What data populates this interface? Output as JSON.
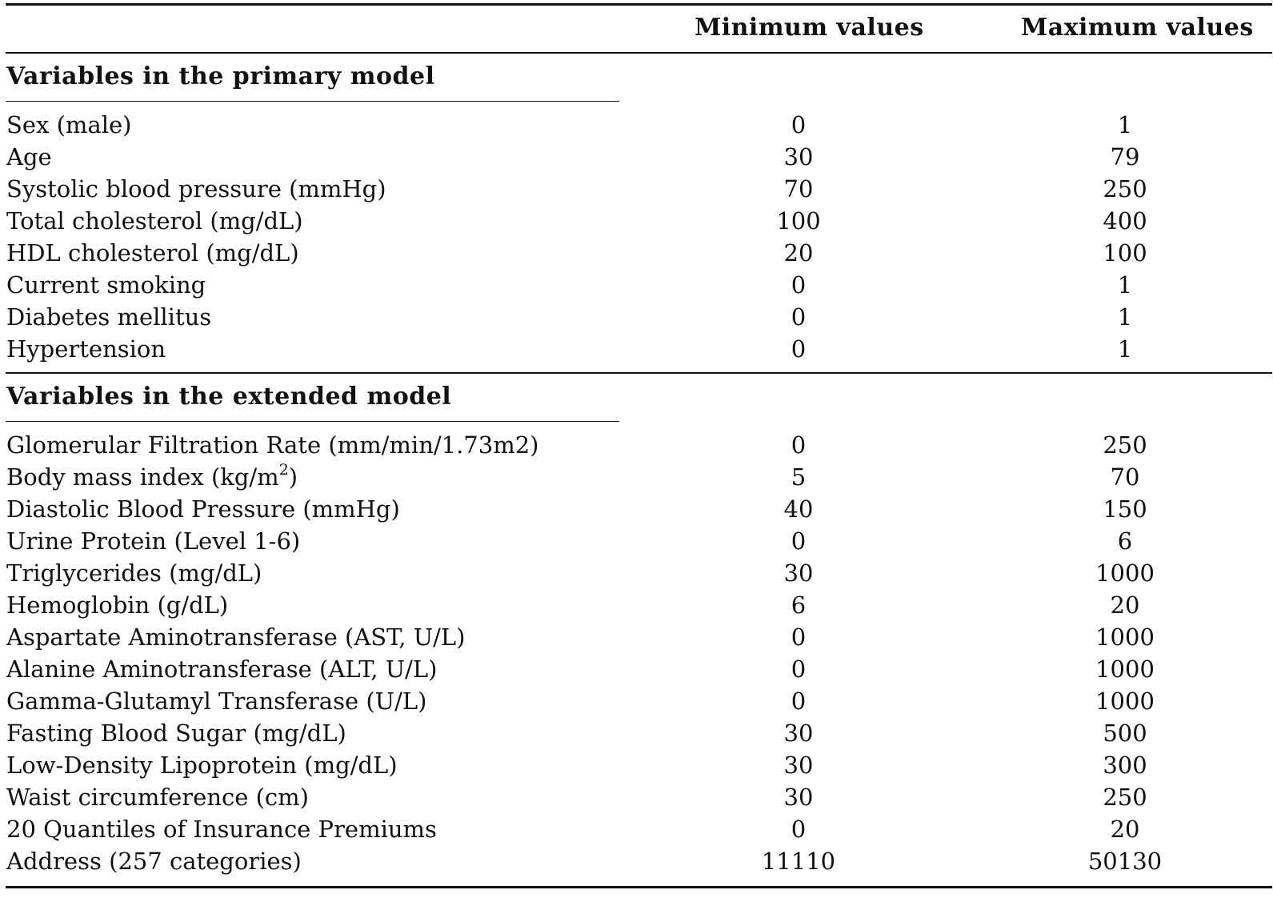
{
  "header": {
    "min_label": "Minimum values",
    "max_label": "Maximum values"
  },
  "sections": [
    {
      "title": "Variables in the primary model",
      "rows": [
        {
          "label": "Sex (male)",
          "min": "0",
          "max": "1"
        },
        {
          "label": "Age",
          "min": "30",
          "max": "79"
        },
        {
          "label": "Systolic blood pressure (mmHg)",
          "min": "70",
          "max": "250"
        },
        {
          "label": "Total cholesterol (mg/dL)",
          "min": "100",
          "max": "400"
        },
        {
          "label": "HDL cholesterol (mg/dL)",
          "min": "20",
          "max": "100"
        },
        {
          "label": "Current smoking",
          "min": "0",
          "max": "1"
        },
        {
          "label": "Diabetes mellitus",
          "min": "0",
          "max": "1"
        },
        {
          "label": "Hypertension",
          "min": "0",
          "max": "1"
        }
      ]
    },
    {
      "title": "Variables in the extended model",
      "rows": [
        {
          "label": "Glomerular Filtration Rate (mm/min/1.73m2)",
          "min": "0",
          "max": "250"
        },
        {
          "label": "Body mass index (kg/m",
          "label_sup": "2",
          "label_suffix": ")",
          "min": "5",
          "max": "70"
        },
        {
          "label": "Diastolic Blood Pressure (mmHg)",
          "min": "40",
          "max": "150"
        },
        {
          "label": "Urine Protein (Level 1-6)",
          "min": "0",
          "max": "6"
        },
        {
          "label": "Triglycerides (mg/dL)",
          "min": "30",
          "max": "1000"
        },
        {
          "label": "Hemoglobin (g/dL)",
          "min": "6",
          "max": "20"
        },
        {
          "label": "Aspartate Aminotransferase (AST, U/L)",
          "min": "0",
          "max": "1000"
        },
        {
          "label": "Alanine Aminotransferase (ALT, U/L)",
          "min": "0",
          "max": "1000"
        },
        {
          "label": "Gamma-Glutamyl Transferase (U/L)",
          "min": "0",
          "max": "1000"
        },
        {
          "label": "Fasting Blood Sugar (mg/dL)",
          "min": "30",
          "max": "500"
        },
        {
          "label": "Low-Density Lipoprotein (mg/dL)",
          "min": "30",
          "max": "300"
        },
        {
          "label": "Waist circumference (cm)",
          "min": "30",
          "max": "250"
        },
        {
          "label": "20 Quantiles of Insurance Premiums",
          "min": "0",
          "max": "20"
        },
        {
          "label": "Address (257 categories)",
          "min": "11110",
          "max": "50130"
        }
      ]
    }
  ]
}
